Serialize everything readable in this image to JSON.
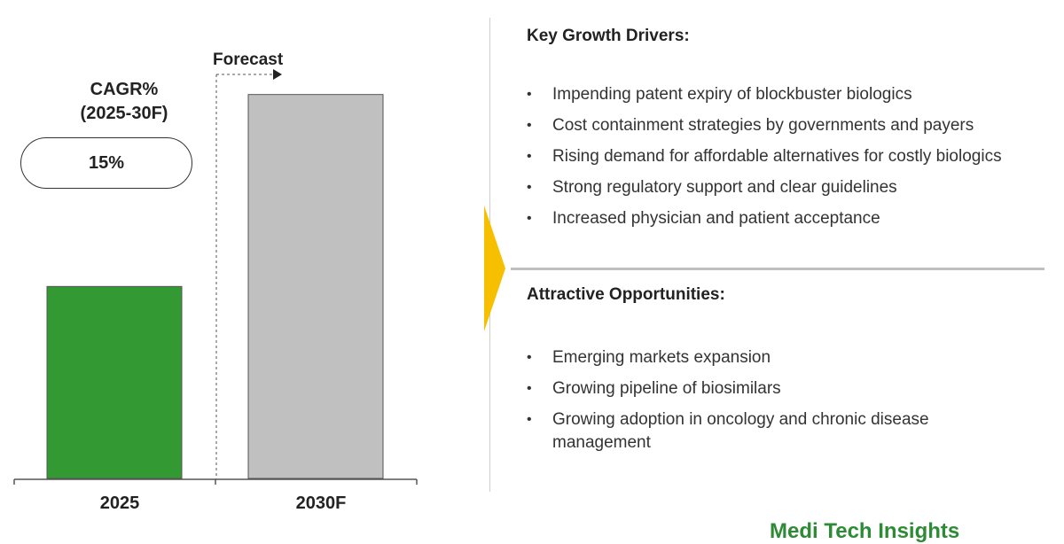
{
  "chart_data": {
    "type": "bar",
    "categories": [
      "2025",
      "2030F"
    ],
    "values": [
      1,
      2
    ],
    "value_note": "relative bar heights; no axis scale shown",
    "ylim": [
      0,
      2.1
    ],
    "colors": [
      "#339933",
      "#c0c0c0"
    ],
    "forecast_label": "Forecast",
    "forecast_start_category": "2030F",
    "grid": false,
    "legend": "none"
  },
  "cagr": {
    "title_line1": "CAGR%",
    "title_line2": "(2025-30F)",
    "value": "15%"
  },
  "drivers": {
    "title": "Key Growth Drivers:",
    "items": [
      "Impending patent expiry of blockbuster biologics",
      "Cost containment strategies by governments and payers",
      "Rising demand for affordable alternatives for costly biologics",
      "Strong regulatory support and clear guidelines",
      "Increased physician and patient acceptance"
    ]
  },
  "opportunities": {
    "title": "Attractive Opportunities:",
    "items": [
      "Emerging markets expansion",
      "Growing pipeline of biosimilars",
      "Growing adoption in oncology and chronic disease management"
    ]
  },
  "accent_color": "#f6c000",
  "logo": {
    "text": "Medi Tech Insights",
    "color": "#2e8b35"
  }
}
